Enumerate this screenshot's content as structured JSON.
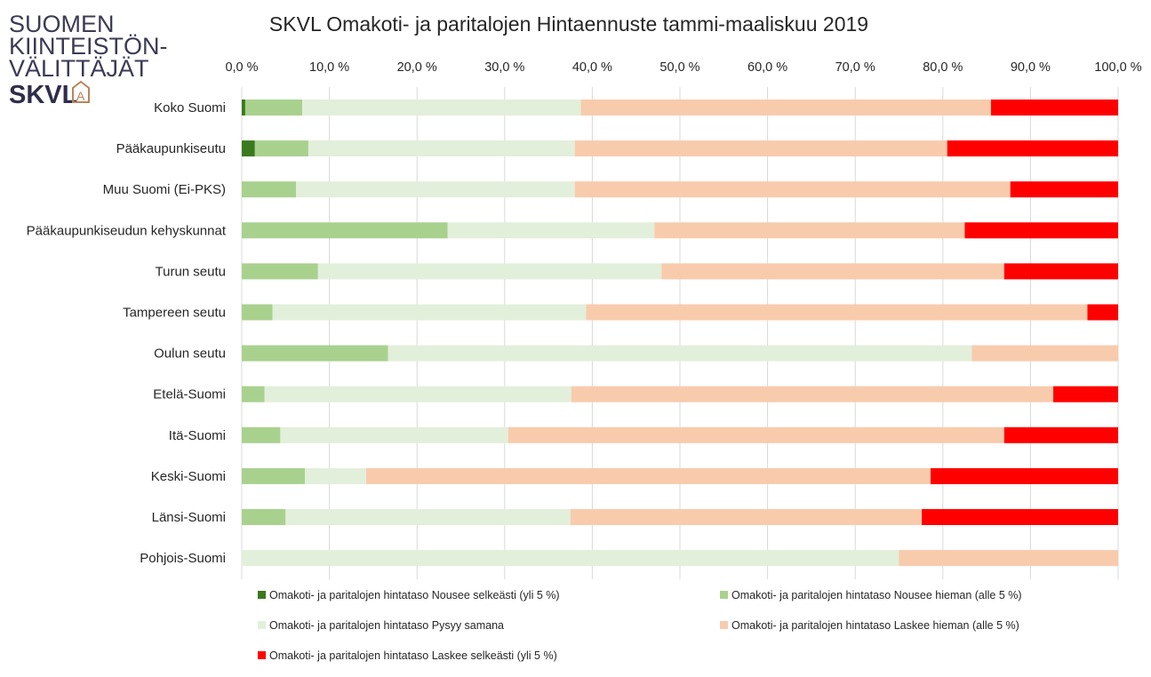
{
  "logo": {
    "line1": "SUOMEN",
    "line2": "KIINTEISTÖN-",
    "line3": "VÄLITTÄJÄT",
    "line4": "SKVL",
    "mark": "A"
  },
  "chart_data": {
    "type": "bar",
    "orientation": "horizontal",
    "stacked": "percent",
    "title": "SKVL Omakoti- ja paritalojen Hintaennuste tammi-maaliskuu 2019",
    "xlabel": "",
    "ylabel": "",
    "xlim": [
      0,
      100
    ],
    "x_ticks": [
      "0,0 %",
      "10,0 %",
      "20,0 %",
      "30,0 %",
      "40,0 %",
      "50,0 %",
      "60,0 %",
      "70,0 %",
      "80,0 %",
      "90,0 %",
      "100,0 %"
    ],
    "x_axis_position": "top",
    "grid": true,
    "legend_position": "bottom",
    "categories": [
      "Koko Suomi",
      "Pääkaupunkiseutu",
      "Muu Suomi (Ei-PKS)",
      "Pääkaupunkiseudun kehyskunnat",
      "Turun seutu",
      "Tampereen seutu",
      "Oulun seutu",
      "Etelä-Suomi",
      "Itä-Suomi",
      "Keski-Suomi",
      "Länsi-Suomi",
      "Pohjois-Suomi"
    ],
    "series": [
      {
        "name": "Omakoti- ja paritalojen hintataso Nousee selkeästi (yli 5 %)",
        "color": "#3a7a1e",
        "values": [
          0.4,
          1.5,
          0,
          0,
          0,
          0,
          0,
          0,
          0,
          0,
          0,
          0
        ]
      },
      {
        "name": "Omakoti- ja paritalojen hintataso Nousee hieman (alle 5 %)",
        "color": "#a9d18e",
        "values": [
          6.5,
          6.1,
          6.2,
          23.5,
          8.7,
          3.5,
          16.7,
          2.6,
          4.4,
          7.2,
          5.0,
          0
        ]
      },
      {
        "name": "Omakoti- ja paritalojen hintataso Pysyy samana",
        "color": "#e2efda",
        "values": [
          31.8,
          30.4,
          31.8,
          23.6,
          39.2,
          35.8,
          66.6,
          35.0,
          26.0,
          7.0,
          32.5,
          75.0
        ]
      },
      {
        "name": "Omakoti- ja paritalojen hintataso Laskee hieman (alle 5 %)",
        "color": "#f8cbad",
        "values": [
          46.8,
          42.5,
          49.7,
          35.4,
          39.1,
          57.2,
          16.7,
          55.0,
          56.6,
          64.4,
          40.1,
          25.0
        ]
      },
      {
        "name": "Omakoti- ja paritalojen hintataso Laskee selkeästi (yli 5 %)",
        "color": "#ff0000",
        "values": [
          14.5,
          19.5,
          12.3,
          17.5,
          13.0,
          3.5,
          0,
          7.4,
          13.0,
          21.4,
          22.4,
          0
        ]
      }
    ]
  }
}
